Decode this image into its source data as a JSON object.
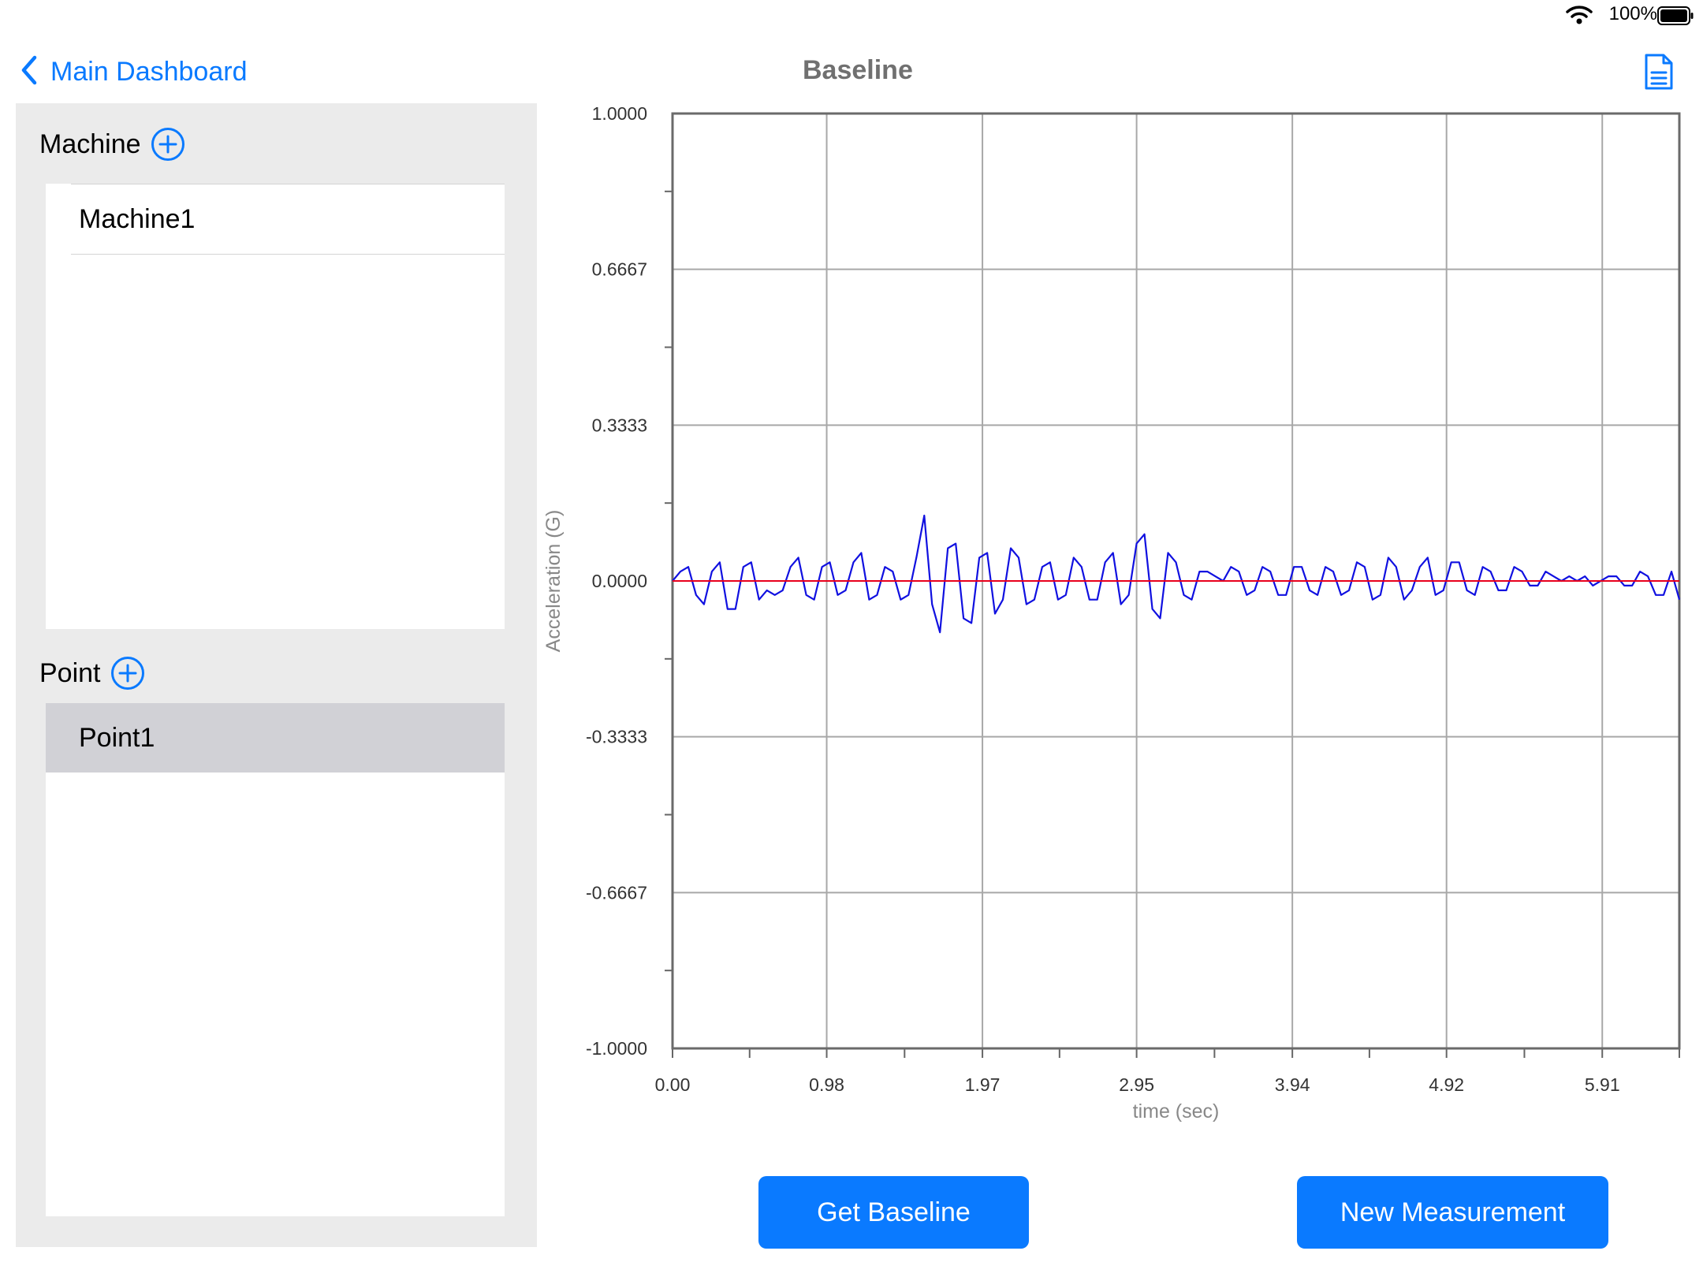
{
  "status": {
    "battery_pct": "100%"
  },
  "nav": {
    "back_label": "Main Dashboard",
    "title": "Baseline"
  },
  "sidebar": {
    "machine_title": "Machine",
    "machines": [
      {
        "label": "Machine1"
      }
    ],
    "point_title": "Point",
    "points": [
      {
        "label": "Point1",
        "selected": true
      }
    ]
  },
  "buttons": {
    "get_baseline": "Get Baseline",
    "new_measurement": "New Measurement"
  },
  "colors": {
    "accent": "#0a7aff",
    "signal": "#1010e0",
    "baseline": "#e8001c",
    "selected_row": "#d1d1d6"
  },
  "chart_data": {
    "type": "line",
    "title": "",
    "xlabel": "time (sec)",
    "ylabel": "Acceleration (G)",
    "xlim": [
      0,
      6.4
    ],
    "ylim": [
      -1.0,
      1.0
    ],
    "x_ticks": [
      0.0,
      0.98,
      1.97,
      2.95,
      3.94,
      4.92,
      5.91
    ],
    "x_tick_labels": [
      "0.00",
      "0.98",
      "1.97",
      "2.95",
      "3.94",
      "4.92",
      "5.91"
    ],
    "y_ticks": [
      1.0,
      0.6667,
      0.3333,
      0.0,
      -0.3333,
      -0.6667,
      -1.0
    ],
    "y_tick_labels": [
      "1.0000",
      "0.6667",
      "0.3333",
      "0.0000",
      "-0.3333",
      "-0.6667",
      "-1.0000"
    ],
    "grid": true,
    "series": [
      {
        "role": "signal",
        "color": "#1010e0",
        "x": [
          0.0,
          0.05,
          0.1,
          0.15,
          0.2,
          0.25,
          0.3,
          0.35,
          0.4,
          0.45,
          0.5,
          0.55,
          0.6,
          0.65,
          0.7,
          0.75,
          0.8,
          0.85,
          0.9,
          0.95,
          1.0,
          1.05,
          1.1,
          1.15,
          1.2,
          1.25,
          1.3,
          1.35,
          1.4,
          1.45,
          1.5,
          1.55,
          1.6,
          1.65,
          1.7,
          1.75,
          1.8,
          1.85,
          1.9,
          1.95,
          2.0,
          2.05,
          2.1,
          2.15,
          2.2,
          2.25,
          2.3,
          2.35,
          2.4,
          2.45,
          2.5,
          2.55,
          2.6,
          2.65,
          2.7,
          2.75,
          2.8,
          2.85,
          2.9,
          2.95,
          3.0,
          3.05,
          3.1,
          3.15,
          3.2,
          3.25,
          3.3,
          3.35,
          3.4,
          3.45,
          3.5,
          3.55,
          3.6,
          3.65,
          3.7,
          3.75,
          3.8,
          3.85,
          3.9,
          3.95,
          4.0,
          4.05,
          4.1,
          4.15,
          4.2,
          4.25,
          4.3,
          4.35,
          4.4,
          4.45,
          4.5,
          4.55,
          4.6,
          4.65,
          4.7,
          4.75,
          4.8,
          4.85,
          4.9,
          4.95,
          5.0,
          5.05,
          5.1,
          5.15,
          5.2,
          5.25,
          5.3,
          5.35,
          5.4,
          5.45,
          5.5,
          5.55,
          5.6,
          5.65,
          5.7,
          5.75,
          5.8,
          5.85,
          5.9,
          5.95,
          6.0,
          6.05,
          6.1,
          6.15,
          6.2,
          6.25,
          6.3,
          6.35,
          6.4
        ],
        "y": [
          0.0,
          0.02,
          0.03,
          -0.03,
          -0.05,
          0.02,
          0.04,
          -0.06,
          -0.06,
          0.03,
          0.04,
          -0.04,
          -0.02,
          -0.03,
          -0.02,
          0.03,
          0.05,
          -0.03,
          -0.04,
          0.03,
          0.04,
          -0.03,
          -0.02,
          0.04,
          0.06,
          -0.04,
          -0.03,
          0.03,
          0.02,
          -0.04,
          -0.03,
          0.05,
          0.14,
          -0.05,
          -0.11,
          0.07,
          0.08,
          -0.08,
          -0.09,
          0.05,
          0.06,
          -0.07,
          -0.04,
          0.07,
          0.05,
          -0.05,
          -0.04,
          0.03,
          0.04,
          -0.04,
          -0.03,
          0.05,
          0.03,
          -0.04,
          -0.04,
          0.04,
          0.06,
          -0.05,
          -0.03,
          0.08,
          0.1,
          -0.06,
          -0.08,
          0.06,
          0.04,
          -0.03,
          -0.04,
          0.02,
          0.02,
          0.01,
          0.0,
          0.03,
          0.02,
          -0.03,
          -0.02,
          0.03,
          0.02,
          -0.03,
          -0.03,
          0.03,
          0.03,
          -0.02,
          -0.03,
          0.03,
          0.02,
          -0.03,
          -0.02,
          0.04,
          0.03,
          -0.04,
          -0.03,
          0.05,
          0.03,
          -0.04,
          -0.02,
          0.03,
          0.05,
          -0.03,
          -0.02,
          0.04,
          0.04,
          -0.02,
          -0.03,
          0.03,
          0.02,
          -0.02,
          -0.02,
          0.03,
          0.02,
          -0.01,
          -0.01,
          0.02,
          0.01,
          0.0,
          0.01,
          0.0,
          0.01,
          -0.01,
          0.0,
          0.01,
          0.01,
          -0.01,
          -0.01,
          0.02,
          0.01,
          -0.03,
          -0.03,
          0.02,
          -0.04
        ]
      },
      {
        "role": "baseline",
        "color": "#e8001c",
        "x": [
          0,
          6.4
        ],
        "y": [
          0,
          0
        ]
      }
    ]
  }
}
